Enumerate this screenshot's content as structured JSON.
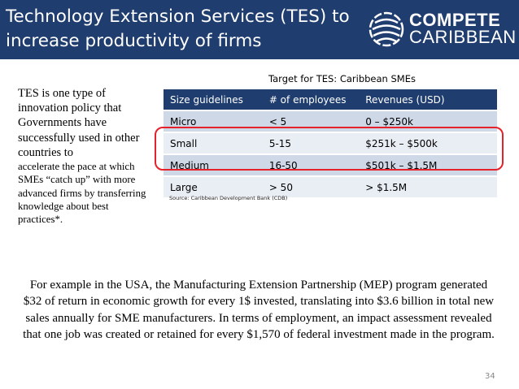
{
  "header": {
    "title": "Technology Extension Services (TES) to increase productivity of firms",
    "logo_line1": "COMPETE",
    "logo_line2": "CARIBBEAN"
  },
  "sidebar": {
    "part1": "TES is one type of innovation policy that Governments have successfully used in other countries to",
    "part2": "accelerate the pace at which SMEs “catch up” with more advanced firms by transferring knowledge about best practices*."
  },
  "table": {
    "title": "Target for TES: Caribbean SMEs",
    "headers": [
      "Size guidelines",
      "# of employees",
      "Revenues (USD)"
    ],
    "rows": [
      [
        "Micro",
        "< 5",
        "0 – $250k"
      ],
      [
        "Small",
        "5-15",
        "$251k – $500k"
      ],
      [
        "Medium",
        "16-50",
        "$501k – $1.5M"
      ],
      [
        "Large",
        "> 50",
        "> $1.5M"
      ]
    ],
    "source": "Source: Caribbean Development Bank (CDB)"
  },
  "paragraph": "For example in the USA, the Manufacturing Extension Partnership (MEP) program generated $32 of return in economic growth for every 1$ invested, translating into $3.6 billion in total new sales annually for SME manufacturers. In terms of employment, an impact assessment revealed that one job was created or retained for every $1,570 of federal investment made in the program.",
  "page_number": "34",
  "colors": {
    "header_bg": "#1f3d6e",
    "row_alt": "#cfd8e6",
    "row_plain": "#e9edf4",
    "highlight": "#e5212b"
  }
}
